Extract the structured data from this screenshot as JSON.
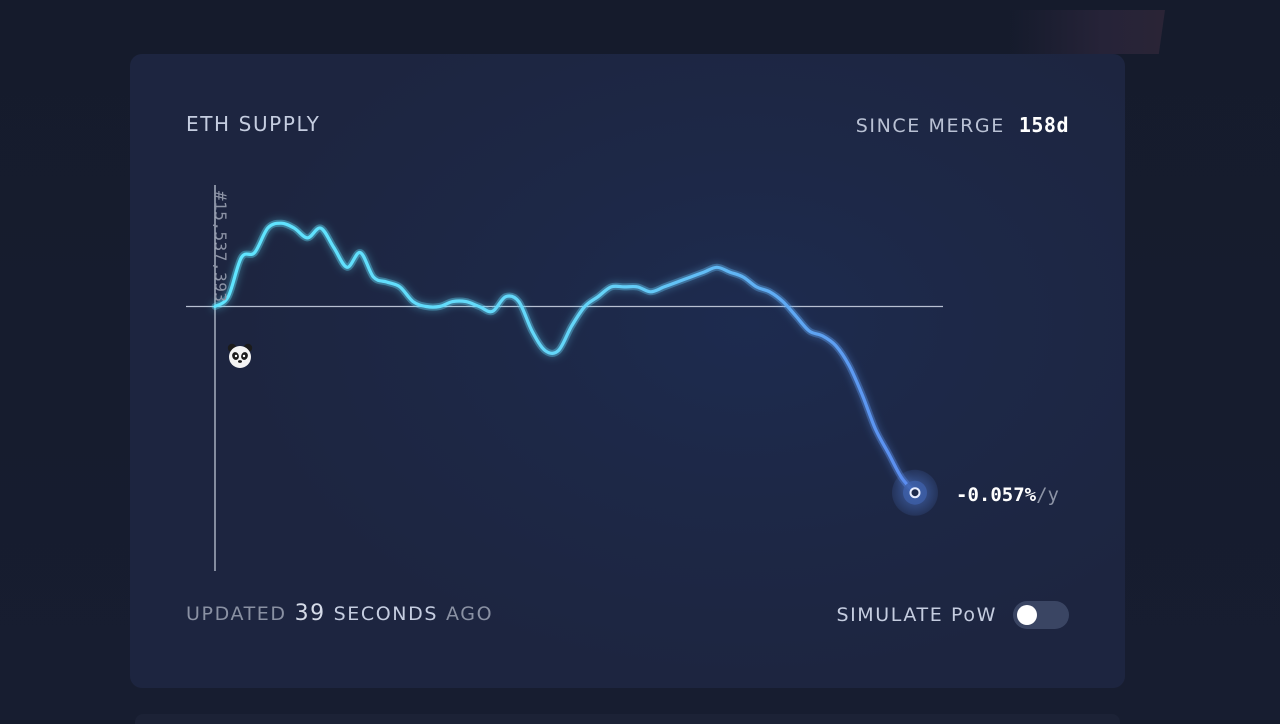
{
  "header": {
    "title": "ETH SUPPLY",
    "since_label": "SINCE MERGE",
    "since_value": "158d"
  },
  "chart": {
    "start_block_label": "#15,537,393",
    "start_marker_icon": "panda-icon",
    "current_rate": "-0.057%",
    "current_rate_unit": "/y",
    "line_color_start": "#5fe6ff",
    "line_color_end": "#5b8cf0"
  },
  "chart_data": {
    "type": "line",
    "series": [
      {
        "values": [
          0,
          0.02,
          0.1,
          0.11,
          0.16,
          0.17,
          0.16,
          0.14,
          0.16,
          0.12,
          0.08,
          0.11,
          0.06,
          0.05,
          0.04,
          0.01,
          0.0,
          0.0,
          0.01,
          0.01,
          0.0,
          -0.01,
          0.02,
          0.01,
          -0.05,
          -0.09,
          -0.09,
          -0.04,
          0.0,
          0.02,
          0.04,
          0.04,
          0.04,
          0.03,
          0.04,
          0.05,
          0.06,
          0.07,
          0.08,
          0.07,
          0.06,
          0.04,
          0.03,
          0.01,
          -0.02,
          -0.05,
          -0.06,
          -0.08,
          -0.12,
          -0.18,
          -0.25,
          -0.3,
          -0.35,
          -0.38
        ]
      }
    ],
    "zero_line": true,
    "grid": false,
    "legend": "none"
  },
  "footer": {
    "updated_prefix": "UPDATED",
    "updated_value": "39",
    "updated_unit": "SECONDS",
    "updated_suffix": "AGO",
    "simulate_label": "SIMULATE PoW",
    "simulate_on": false
  }
}
